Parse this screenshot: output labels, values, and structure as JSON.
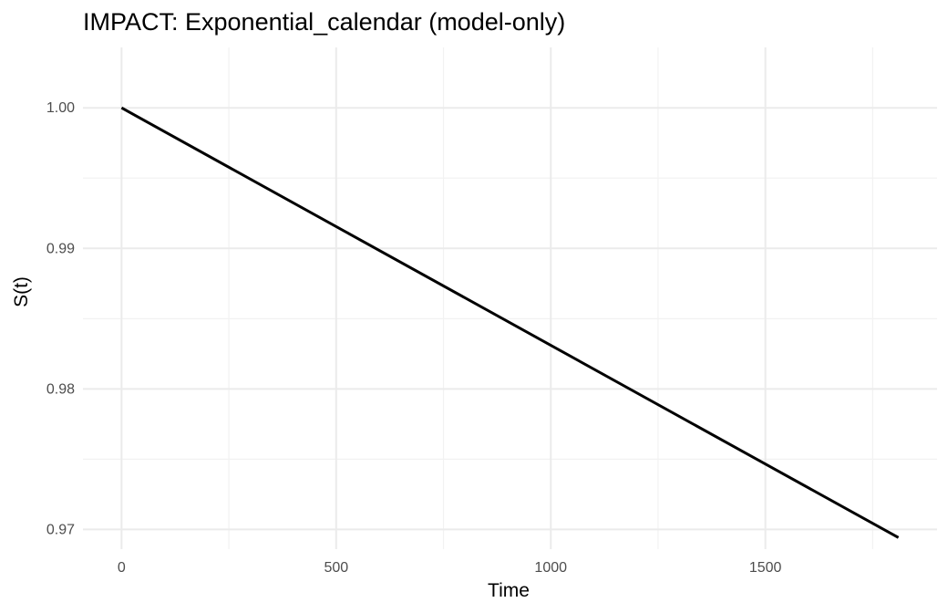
{
  "chart_data": {
    "type": "line",
    "title": "IMPACT: Exponential_calendar (model-only)",
    "xlabel": "Time",
    "ylabel": "S(t)",
    "xlim": [
      -90,
      1900
    ],
    "ylim": [
      0.9686,
      1.0043
    ],
    "x_ticks": [
      0,
      500,
      1000,
      1500
    ],
    "y_ticks": [
      0.97,
      0.98,
      0.99,
      1.0
    ],
    "x_tick_labels": [
      "0",
      "500",
      "1000",
      "1500"
    ],
    "y_tick_labels": [
      "0.97",
      "0.98",
      "0.99",
      "1.00"
    ],
    "grid": true,
    "legend": "none",
    "series": [
      {
        "color": "#000000",
        "x": [
          0,
          1810
        ],
        "y": [
          1.0,
          0.96942
        ]
      }
    ]
  }
}
